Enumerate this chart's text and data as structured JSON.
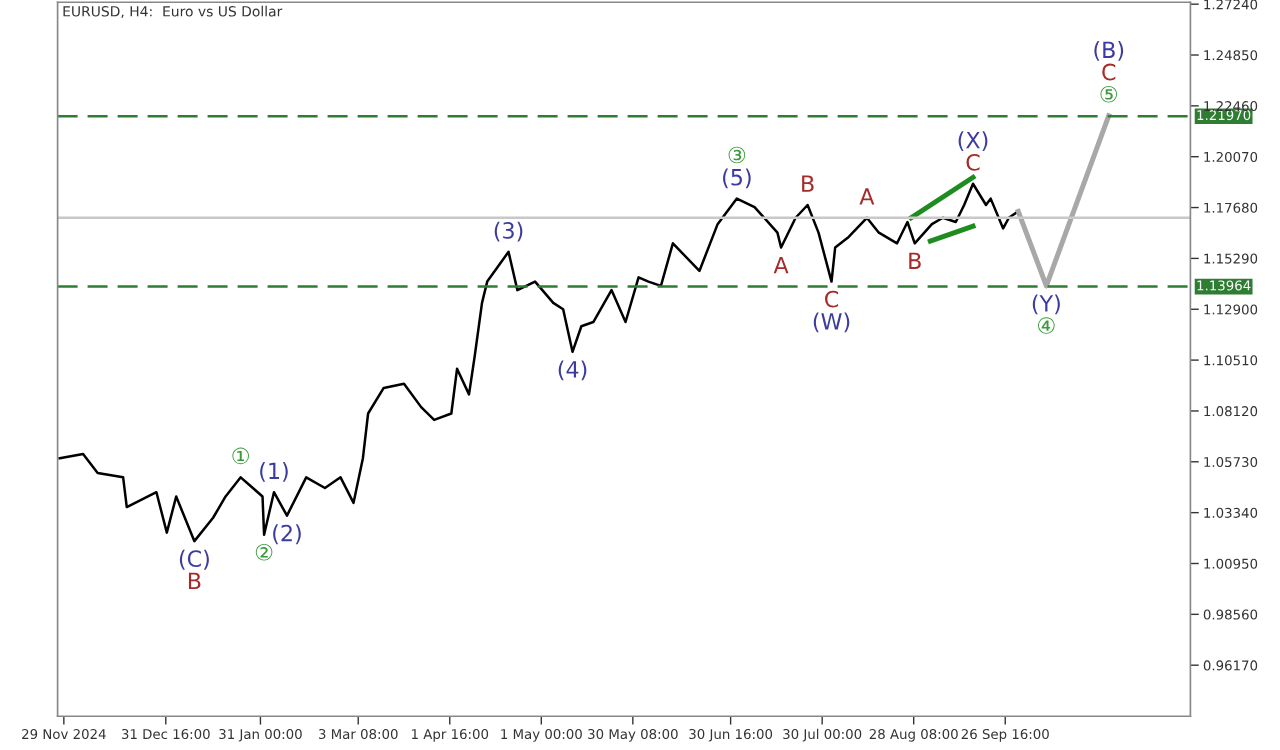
{
  "chart_data": {
    "type": "line",
    "title": "EURUSD, H4:  Euro vs US Dollar",
    "xlim": [
      "2024-11-27",
      "2025-11-25"
    ],
    "ylim": [
      0.9377,
      1.2733
    ],
    "xticks": [
      {
        "value": "2024-11-29",
        "label": "29 Nov 2024"
      },
      {
        "value": "2024-12-31T16:00",
        "label": "31 Dec 16:00"
      },
      {
        "value": "2025-01-31T00:00",
        "label": "31 Jan 00:00"
      },
      {
        "value": "2025-03-03T08:00",
        "label": "3 Mar 08:00"
      },
      {
        "value": "2025-04-01T16:00",
        "label": "1 Apr 16:00"
      },
      {
        "value": "2025-05-01T00:00",
        "label": "1 May 00:00"
      },
      {
        "value": "2025-05-30T08:00",
        "label": "30 May 08:00"
      },
      {
        "value": "2025-06-30T16:00",
        "label": "30 Jun 16:00"
      },
      {
        "value": "2025-07-30T00:00",
        "label": "30 Jul 00:00"
      },
      {
        "value": "2025-08-28T08:00",
        "label": "28 Aug 08:00"
      },
      {
        "value": "2025-09-26T16:00",
        "label": "26 Sep 16:00"
      }
    ],
    "yticks": [
      {
        "value": 0.9617,
        "label": "0.96170"
      },
      {
        "value": 0.9856,
        "label": "0.98560"
      },
      {
        "value": 1.0095,
        "label": "1.00950"
      },
      {
        "value": 1.0334,
        "label": "1.03340"
      },
      {
        "value": 1.0573,
        "label": "1.05730"
      },
      {
        "value": 1.0812,
        "label": "1.08120"
      },
      {
        "value": 1.1051,
        "label": "1.10510"
      },
      {
        "value": 1.129,
        "label": "1.12900"
      },
      {
        "value": 1.1529,
        "label": "1.15290"
      },
      {
        "value": 1.1768,
        "label": "1.17680"
      },
      {
        "value": 1.2007,
        "label": "1.20070"
      },
      {
        "value": 1.2246,
        "label": "1.22460"
      },
      {
        "value": 1.2485,
        "label": "1.24850"
      },
      {
        "value": 1.2724,
        "label": "1.27240"
      }
    ],
    "grid": false,
    "series": [
      {
        "color": "#000000",
        "x": [
          "2024-11-27T16:00",
          "2024-12-05T04:00",
          "2024-12-09T20:00",
          "2024-12-18T00:00",
          "2024-12-19T04:00",
          "2024-12-28T16:00",
          "2025-01-01T00:00",
          "2025-01-04T00:00",
          "2025-01-09T20:00",
          "2025-01-15T20:00",
          "2025-01-19T20:00",
          "2025-01-24T16:00",
          "2025-01-31T16:00",
          "2025-02-01T04:00",
          "2025-02-04T08:00",
          "2025-02-08T12:00",
          "2025-02-14T16:00",
          "2025-02-20T16:00",
          "2025-02-25T16:00",
          "2025-03-01T20:00",
          "2025-03-04T20:00",
          "2025-03-06T12:00",
          "2025-03-11T12:00",
          "2025-03-18T00:00",
          "2025-03-23T12:00",
          "2025-03-27T16:00",
          "2025-04-02T04:00",
          "2025-04-04T00:00",
          "2025-04-07T20:00",
          "2025-04-09T16:00",
          "2025-04-12T00:00",
          "2025-04-13T16:00",
          "2025-04-20T12:00",
          "2025-04-23T08:00",
          "2025-04-29T00:00",
          "2025-05-04T20:00",
          "2025-05-08T00:00",
          "2025-05-11T00:00",
          "2025-05-13T20:00",
          "2025-05-17T16:00",
          "2025-05-23T12:00",
          "2025-05-28T00:00",
          "2025-06-01T04:00",
          "2025-06-04T08:00",
          "2025-06-08T08:00",
          "2025-06-12T04:00",
          "2025-06-20T16:00",
          "2025-06-26T12:00",
          "2025-07-02T16:00",
          "2025-07-08T08:00",
          "2025-07-15T16:00",
          "2025-07-16T20:00",
          "2025-07-21T12:00",
          "2025-07-25T08:00",
          "2025-07-28T20:00",
          "2025-08-02T00:00",
          "2025-08-03T04:00",
          "2025-08-07T12:00",
          "2025-08-13T08:00",
          "2025-08-17T04:00",
          "2025-08-23T00:00",
          "2025-08-26T08:00",
          "2025-08-28T16:00",
          "2025-09-03T04:00",
          "2025-09-06T16:00",
          "2025-09-10T20:00",
          "2025-09-13T12:00",
          "2025-09-16T08:00",
          "2025-09-20T12:00",
          "2025-09-22T00:00",
          "2025-09-26T00:00",
          "2025-09-27T20:00",
          "2025-09-30T20:00"
        ],
        "values": [
          1.059,
          1.061,
          1.052,
          1.05,
          1.036,
          1.043,
          1.024,
          1.041,
          1.02,
          1.031,
          1.041,
          1.05,
          1.041,
          1.023,
          1.043,
          1.032,
          1.05,
          1.045,
          1.05,
          1.038,
          1.059,
          1.08,
          1.092,
          1.094,
          1.083,
          1.077,
          1.08,
          1.101,
          1.089,
          1.107,
          1.132,
          1.142,
          1.156,
          1.138,
          1.142,
          1.132,
          1.129,
          1.109,
          1.121,
          1.123,
          1.138,
          1.123,
          1.144,
          1.142,
          1.14,
          1.16,
          1.147,
          1.169,
          1.181,
          1.177,
          1.165,
          1.158,
          1.172,
          1.178,
          1.165,
          1.142,
          1.158,
          1.163,
          1.172,
          1.165,
          1.16,
          1.17,
          1.16,
          1.169,
          1.172,
          1.17,
          1.178,
          1.188,
          1.178,
          1.181,
          1.167,
          1.172,
          1.175
        ]
      },
      {
        "color": "#a8a8a8",
        "x": [
          "2025-09-30T20:00",
          "2025-10-09T20:00",
          "2025-10-29T20:00"
        ],
        "values": [
          1.175,
          1.14,
          1.22
        ]
      },
      {
        "color": "#1e8c1e",
        "x": [
          "2025-08-27T12:00",
          "2025-09-16T08:00"
        ],
        "values": [
          1.172,
          1.191
        ]
      },
      {
        "color": "#1e8c1e",
        "x": [
          "2025-09-02T16:00",
          "2025-09-16T08:00"
        ],
        "values": [
          1.161,
          1.168
        ]
      }
    ],
    "ref_lines": [
      {
        "axis": "y",
        "value": 1.2197,
        "label": "1.21970",
        "color": "#2e7d32",
        "line_style": "dashed"
      },
      {
        "axis": "y",
        "value": 1.13964,
        "label": "1.13964",
        "color": "#2e7d32",
        "line_style": "dashed"
      },
      {
        "axis": "y",
        "value": 1.172,
        "color": "#c8c8c8",
        "line_style": "solid"
      }
    ],
    "annotations": [
      {
        "text": "(C)",
        "x": "2025-01-09T20:00",
        "y": 1.02
      },
      {
        "text": "B",
        "x": "2025-01-09T20:00",
        "y": 1.02
      },
      {
        "text": "①",
        "x": "2025-01-24T16:00",
        "y": 1.05
      },
      {
        "text": "(1)",
        "x": "2025-02-04T08:00",
        "y": 1.043
      },
      {
        "text": "②",
        "x": "2025-02-01T04:00",
        "y": 1.023
      },
      {
        "text": "(2)",
        "x": "2025-02-08T12:00",
        "y": 1.032
      },
      {
        "text": "(3)",
        "x": "2025-04-20T12:00",
        "y": 1.156
      },
      {
        "text": "(4)",
        "x": "2025-05-11T00:00",
        "y": 1.109
      },
      {
        "text": "(5)",
        "x": "2025-07-02T16:00",
        "y": 1.181
      },
      {
        "text": "③",
        "x": "2025-07-02T16:00",
        "y": 1.181
      },
      {
        "text": "A",
        "x": "2025-07-16T20:00",
        "y": 1.158
      },
      {
        "text": "B",
        "x": "2025-07-25T08:00",
        "y": 1.178
      },
      {
        "text": "C",
        "x": "2025-08-02T00:00",
        "y": 1.142
      },
      {
        "text": "(W)",
        "x": "2025-08-02T00:00",
        "y": 1.142
      },
      {
        "text": "A",
        "x": "2025-08-13T08:00",
        "y": 1.172
      },
      {
        "text": "B",
        "x": "2025-08-28T16:00",
        "y": 1.16
      },
      {
        "text": "C",
        "x": "2025-09-16T08:00",
        "y": 1.188
      },
      {
        "text": "(X)",
        "x": "2025-09-16T08:00",
        "y": 1.188
      },
      {
        "text": "(Y)",
        "x": "2025-10-09T20:00",
        "y": 1.14
      },
      {
        "text": "④",
        "x": "2025-10-09T20:00",
        "y": 1.14
      },
      {
        "text": "⑤",
        "x": "2025-10-29T20:00",
        "y": 1.22
      },
      {
        "text": "C",
        "x": "2025-10-29T20:00",
        "y": 1.22
      },
      {
        "text": "(B)",
        "x": "2025-10-29T20:00",
        "y": 1.22
      }
    ]
  }
}
